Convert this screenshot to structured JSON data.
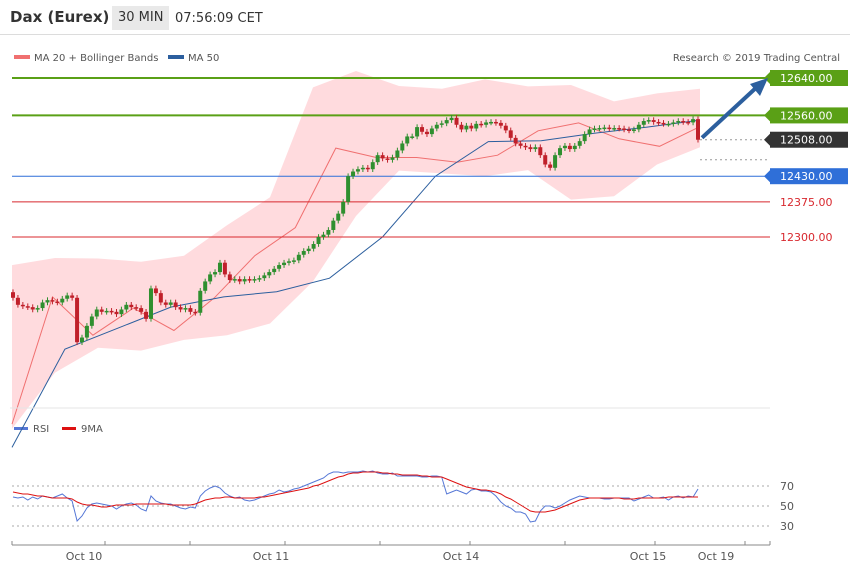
{
  "header": {
    "title": "Dax (Eurex)",
    "timeframe": "30 MIN",
    "time": "07:56:09 CET"
  },
  "legend": {
    "ma20": "MA 20 + Bollinger Bands",
    "ma50": "MA 50",
    "credit": "Research © 2019 Trading Central"
  },
  "colors": {
    "bull": "#2f8f2f",
    "bear": "#c0202a",
    "ma20": "#f07070",
    "ma50": "#2c5f9e",
    "band": "#ffd5d8",
    "resist": "#5aa016",
    "support": "#d8282e",
    "pivot": "#2f6fd8",
    "last": "#333333",
    "rsi": "#5577d6",
    "rsi_ma": "#dd1111",
    "arrow": "#2c5f9e"
  },
  "chart_data": [
    {
      "type": "candlestick",
      "title": "Dax (Eurex)",
      "ylim": [
        11900,
        12720
      ],
      "x_labels": [
        "Oct 10",
        "Oct 11",
        "Oct 14",
        "Oct 15",
        "Oct 19"
      ],
      "levels": [
        {
          "value": 12640,
          "label": "12640.00",
          "kind": "resistance"
        },
        {
          "value": 12560,
          "label": "12560.00",
          "kind": "resistance"
        },
        {
          "value": 12508,
          "label": "12508.00",
          "kind": "last"
        },
        {
          "value": 12430,
          "label": "12430.00",
          "kind": "pivot"
        },
        {
          "value": 12375,
          "label": "12375.00",
          "kind": "support"
        },
        {
          "value": 12300,
          "label": "12300.00",
          "kind": "support"
        }
      ],
      "close": [
        12170,
        12155,
        12152,
        12150,
        12145,
        12148,
        12160,
        12165,
        12162,
        12160,
        12168,
        12175,
        12170,
        12075,
        12085,
        12110,
        12130,
        12145,
        12140,
        12142,
        12140,
        12135,
        12145,
        12155,
        12150,
        12148,
        12140,
        12125,
        12190,
        12180,
        12160,
        12155,
        12160,
        12150,
        12145,
        12148,
        12140,
        12138,
        12185,
        12205,
        12220,
        12225,
        12245,
        12220,
        12208,
        12210,
        12205,
        12210,
        12208,
        12210,
        12212,
        12218,
        12225,
        12232,
        12240,
        12245,
        12248,
        12250,
        12262,
        12270,
        12275,
        12285,
        12300,
        12305,
        12315,
        12335,
        12350,
        12375,
        12430,
        12440,
        12445,
        12448,
        12445,
        12460,
        12475,
        12468,
        12465,
        12470,
        12485,
        12500,
        12515,
        12515,
        12535,
        12525,
        12520,
        12532,
        12540,
        12543,
        12550,
        12555,
        12540,
        12530,
        12538,
        12532,
        12542,
        12540,
        12545,
        12546,
        12544,
        12538,
        12528,
        12512,
        12500,
        12495,
        12492,
        12488,
        12492,
        12475,
        12455,
        12448,
        12475,
        12490,
        12495,
        12488,
        12495,
        12505,
        12520,
        12530,
        12532,
        12533,
        12534,
        12532,
        12533,
        12532,
        12530,
        12528,
        12530,
        12540,
        12548,
        12550,
        12546,
        12544,
        12542,
        12542,
        12545,
        12548,
        12546,
        12545,
        12552,
        12508
      ],
      "ma20": [
        11900,
        12172,
        12090,
        12148,
        12100,
        12170,
        12260,
        12320,
        12490,
        12470,
        12470,
        12460,
        12475,
        12527,
        12544,
        12510,
        12494,
        12536
      ],
      "ma50": [
        11850,
        12060,
        12105,
        12150,
        12172,
        12183,
        12212,
        12300,
        12430,
        12504,
        12506,
        12522,
        12535,
        12550
      ],
      "bollinger": {
        "upper": [
          12240,
          12255,
          12254,
          12247,
          12260,
          12325,
          12385,
          12620,
          12655,
          12623,
          12617,
          12637,
          12622,
          12625,
          12590,
          12607,
          12617
        ],
        "lower": [
          11890,
          12010,
          12063,
          12057,
          12080,
          12090,
          12115,
          12205,
          12345,
          12442,
          12436,
          12430,
          12443,
          12380,
          12387,
          12455,
          12492
        ]
      }
    },
    {
      "type": "line",
      "title": "RSI",
      "ylim": [
        20,
        85
      ],
      "y_ticks": [
        70,
        50,
        30
      ],
      "series": [
        {
          "name": "RSI",
          "values": [
            59,
            58,
            59,
            56,
            59,
            57,
            60,
            59,
            58,
            60,
            62,
            58,
            55,
            35,
            40,
            48,
            52,
            53,
            52,
            51,
            50,
            47,
            50,
            52,
            53,
            51,
            47,
            45,
            60,
            55,
            53,
            52,
            52,
            50,
            48,
            47,
            49,
            48,
            60,
            65,
            68,
            70,
            68,
            63,
            60,
            58,
            59,
            56,
            55,
            56,
            58,
            60,
            62,
            63,
            66,
            64,
            65,
            67,
            68,
            70,
            72,
            74,
            76,
            78,
            82,
            84,
            84,
            83,
            84,
            84,
            84,
            85,
            84,
            85,
            83,
            82,
            82,
            83,
            80,
            80,
            80,
            80,
            80,
            79,
            79,
            80,
            80,
            79,
            62,
            64,
            66,
            64,
            62,
            66,
            67,
            65,
            65,
            64,
            60,
            54,
            50,
            48,
            44,
            44,
            42,
            34,
            35,
            45,
            50,
            50,
            48,
            50,
            53,
            56,
            58,
            60,
            59,
            58,
            58,
            58,
            57,
            57,
            58,
            58,
            58,
            58,
            55,
            57,
            59,
            61,
            58,
            58,
            59,
            56,
            59,
            60,
            58,
            60,
            59,
            67
          ]
        },
        {
          "name": "9MA",
          "values": [
            64,
            63,
            62,
            62,
            61,
            60,
            60,
            59,
            58,
            58,
            58,
            58,
            57,
            54,
            52,
            51,
            51,
            50,
            49,
            49,
            50,
            51,
            51,
            51,
            51,
            52,
            52,
            52,
            52,
            52,
            52,
            52,
            51,
            51,
            51,
            51,
            51,
            52,
            54,
            56,
            57,
            58,
            58,
            59,
            59,
            58,
            58,
            58,
            58,
            58,
            59,
            59,
            60,
            61,
            62,
            63,
            64,
            65,
            66,
            67,
            68,
            70,
            71,
            73,
            75,
            77,
            79,
            80,
            82,
            83,
            83,
            84,
            84,
            84,
            84,
            83,
            83,
            82,
            82,
            81,
            81,
            81,
            81,
            80,
            80,
            79,
            79,
            79,
            77,
            75,
            73,
            71,
            69,
            68,
            67,
            66,
            66,
            65,
            64,
            62,
            59,
            57,
            54,
            51,
            48,
            45,
            44,
            44,
            44,
            45,
            46,
            48,
            50,
            52,
            54,
            56,
            57,
            58,
            58,
            58,
            58,
            58,
            58,
            58,
            57,
            57,
            57,
            58,
            58,
            58,
            58,
            58,
            58,
            59,
            59,
            59,
            59,
            59,
            59,
            59
          ]
        }
      ]
    }
  ]
}
